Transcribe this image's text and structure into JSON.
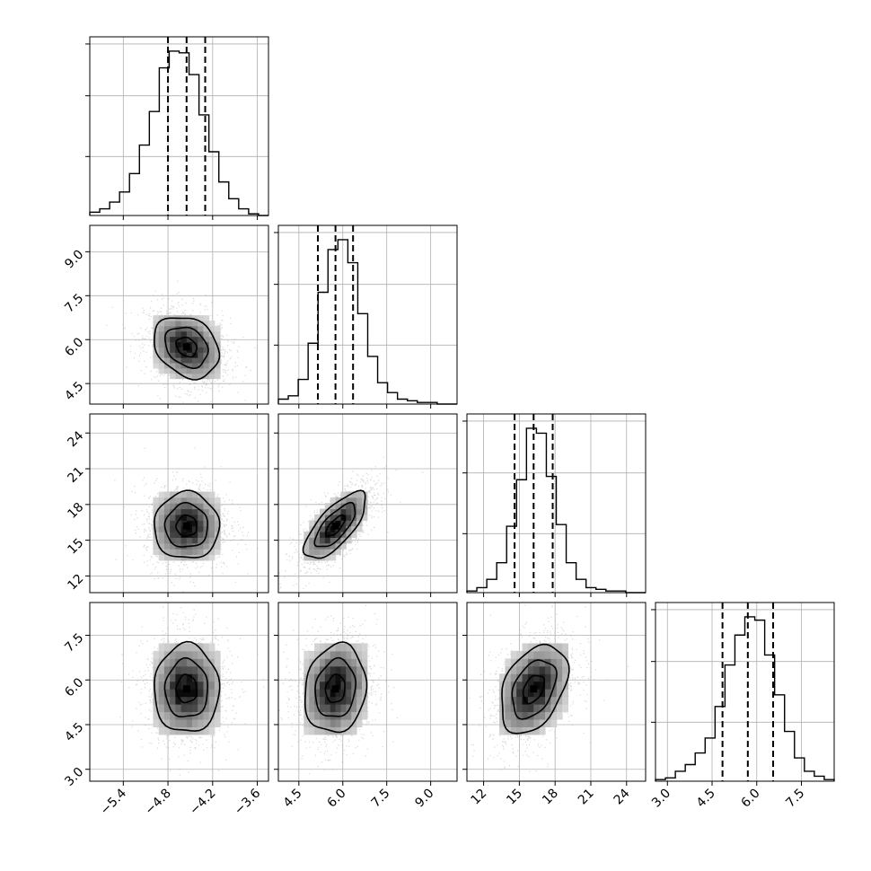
{
  "chart_data": {
    "type": "corner",
    "params": [
      {
        "lim": [
          -5.85,
          -3.45
        ],
        "ticks": [
          -5.4,
          -4.8,
          -4.2,
          -3.6
        ],
        "tick_labels": [
          "−5.4",
          "−4.8",
          "−4.2",
          "−3.6"
        ],
        "mean": -4.55,
        "sd": 0.25,
        "quantiles": [
          -4.8,
          -4.55,
          -4.3
        ]
      },
      {
        "lim": [
          3.8,
          9.9
        ],
        "ticks": [
          4.5,
          6.0,
          7.5,
          9.0
        ],
        "tick_labels": [
          "4.5",
          "6.0",
          "7.5",
          "9.0"
        ],
        "mean": 5.75,
        "sd": 0.6,
        "quantiles": [
          5.15,
          5.75,
          6.35
        ]
      },
      {
        "lim": [
          10.6,
          25.6
        ],
        "ticks": [
          12,
          15,
          18,
          21,
          24
        ],
        "tick_labels": [
          "12",
          "15",
          "18",
          "21",
          "24"
        ],
        "mean": 16.2,
        "sd": 1.6,
        "quantiles": [
          14.6,
          16.2,
          17.8
        ]
      },
      {
        "lim": [
          2.6,
          8.6
        ],
        "ticks": [
          3.0,
          4.5,
          6.0,
          7.5
        ],
        "tick_labels": [
          "3.0",
          "4.5",
          "6.0",
          "7.5"
        ],
        "mean": 5.7,
        "sd": 0.85,
        "quantiles": [
          4.85,
          5.7,
          6.55
        ]
      }
    ],
    "histograms": [
      [
        2,
        4,
        8,
        14,
        25,
        42,
        62,
        88,
        98,
        97,
        84,
        60,
        38,
        20,
        10,
        4,
        1,
        0
      ],
      [
        3,
        5,
        15,
        37,
        68,
        94,
        100,
        86,
        55,
        29,
        13,
        7,
        3,
        2,
        1,
        1,
        0,
        0
      ],
      [
        1,
        3,
        8,
        18,
        40,
        68,
        99,
        96,
        70,
        41,
        18,
        8,
        3,
        2,
        1,
        1,
        0,
        0
      ],
      [
        1,
        2,
        6,
        10,
        17,
        26,
        45,
        70,
        88,
        99,
        97,
        76,
        52,
        30,
        14,
        6,
        3,
        1
      ]
    ],
    "pairs": [
      {
        "x": 0,
        "y": 1,
        "rho": -0.25
      },
      {
        "x": 0,
        "y": 2,
        "rho": 0.0
      },
      {
        "x": 1,
        "y": 2,
        "rho": 0.72
      },
      {
        "x": 0,
        "y": 3,
        "rho": 0.0
      },
      {
        "x": 1,
        "y": 3,
        "rho": 0.12
      },
      {
        "x": 2,
        "y": 3,
        "rho": 0.38
      }
    ],
    "diag_grid_fractions": [
      0.33,
      0.67,
      0.96
    ],
    "contour_levels": [
      0.2,
      0.5,
      0.8
    ],
    "colors": {
      "line": "#000000",
      "grid": "#b0b0b0",
      "points": "#b8b8b8"
    },
    "grid": true,
    "legend": null
  }
}
